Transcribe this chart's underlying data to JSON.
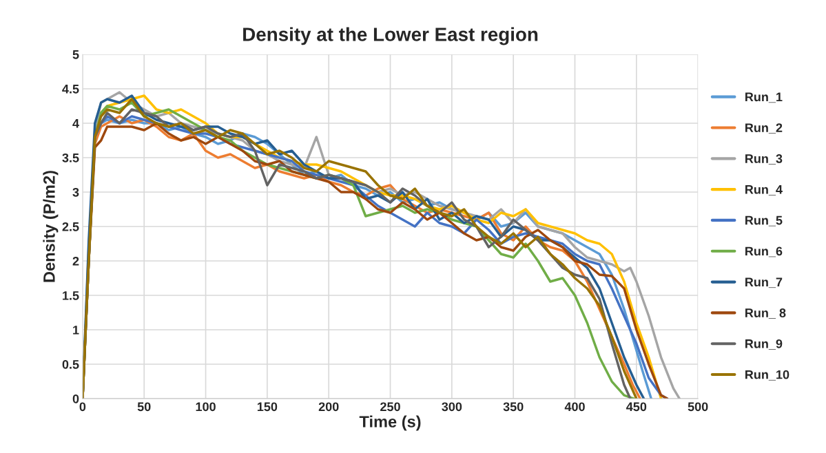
{
  "chart_data": {
    "type": "line",
    "title": "Density at the Lower East region",
    "xlabel": "Time (s)",
    "ylabel": "Density (P/m2)",
    "xlim": [
      0,
      500
    ],
    "xticks": [
      0,
      50,
      100,
      150,
      200,
      250,
      300,
      350,
      400,
      450,
      500
    ],
    "ylim": [
      0,
      5
    ],
    "yticks": [
      0,
      0.5,
      1,
      1.5,
      2,
      2.5,
      3,
      3.5,
      4,
      4.5,
      5
    ],
    "grid": true,
    "legend": "right",
    "marker": "none",
    "line_style": "solid",
    "series": [
      {
        "name": "Run_1",
        "color": "#5b9bd5",
        "x": [
          0,
          5,
          10,
          15,
          20,
          30,
          40,
          50,
          60,
          70,
          80,
          90,
          100,
          110,
          120,
          130,
          140,
          150,
          160,
          170,
          180,
          190,
          200,
          210,
          220,
          230,
          240,
          250,
          260,
          270,
          280,
          290,
          300,
          310,
          320,
          330,
          340,
          350,
          360,
          370,
          380,
          390,
          400,
          410,
          420,
          430,
          440,
          450,
          455,
          462
        ],
        "values": [
          0,
          2.2,
          3.8,
          4.0,
          4.05,
          4.0,
          4.05,
          4.0,
          4.0,
          3.9,
          3.95,
          3.85,
          3.8,
          3.7,
          3.75,
          3.85,
          3.8,
          3.7,
          3.55,
          3.4,
          3.25,
          3.3,
          3.2,
          3.25,
          3.1,
          3.05,
          2.95,
          3.0,
          2.85,
          2.9,
          2.8,
          2.85,
          2.75,
          2.7,
          2.6,
          2.7,
          2.5,
          2.55,
          2.7,
          2.5,
          2.45,
          2.4,
          2.3,
          2.2,
          2.1,
          1.8,
          1.3,
          0.7,
          0.4,
          0
        ]
      },
      {
        "name": "Run_2",
        "color": "#ed7d31",
        "x": [
          0,
          5,
          10,
          15,
          20,
          30,
          40,
          50,
          60,
          70,
          80,
          90,
          100,
          110,
          120,
          130,
          140,
          150,
          160,
          170,
          180,
          190,
          200,
          210,
          220,
          230,
          240,
          250,
          260,
          270,
          280,
          290,
          300,
          310,
          320,
          330,
          340,
          350,
          360,
          370,
          380,
          390,
          400,
          410,
          420,
          430,
          440,
          447,
          453
        ],
        "values": [
          0,
          2.0,
          3.7,
          3.95,
          4.0,
          4.1,
          4.0,
          4.05,
          3.95,
          3.8,
          3.75,
          3.85,
          3.6,
          3.5,
          3.55,
          3.45,
          3.35,
          3.4,
          3.3,
          3.25,
          3.2,
          3.25,
          3.15,
          3.1,
          3.0,
          2.95,
          3.05,
          3.1,
          2.9,
          2.8,
          2.7,
          2.75,
          2.7,
          2.65,
          2.6,
          2.7,
          2.4,
          2.3,
          2.5,
          2.3,
          2.2,
          2.15,
          2.0,
          1.7,
          1.3,
          0.9,
          0.5,
          0.2,
          0
        ]
      },
      {
        "name": "Run_3",
        "color": "#a5a5a5",
        "x": [
          0,
          5,
          10,
          15,
          20,
          30,
          40,
          50,
          60,
          70,
          80,
          90,
          100,
          110,
          120,
          130,
          140,
          150,
          160,
          170,
          180,
          190,
          200,
          210,
          220,
          230,
          240,
          250,
          260,
          270,
          280,
          290,
          300,
          310,
          320,
          330,
          340,
          350,
          360,
          370,
          380,
          390,
          400,
          410,
          420,
          430,
          440,
          445,
          450,
          460,
          470,
          480,
          485
        ],
        "values": [
          0,
          2.1,
          3.9,
          4.3,
          4.35,
          4.45,
          4.3,
          4.2,
          4.1,
          4.15,
          4.0,
          3.95,
          3.9,
          3.85,
          3.8,
          3.75,
          3.6,
          3.55,
          3.45,
          3.4,
          3.35,
          3.8,
          3.25,
          3.2,
          3.15,
          3.1,
          3.0,
          3.05,
          2.95,
          3.0,
          2.9,
          2.8,
          2.75,
          2.7,
          2.65,
          2.6,
          2.75,
          2.55,
          2.75,
          2.5,
          2.45,
          2.4,
          2.2,
          2.05,
          2.0,
          1.95,
          1.85,
          1.9,
          1.7,
          1.2,
          0.6,
          0.15,
          0
        ]
      },
      {
        "name": "Run_4",
        "color": "#ffc000",
        "x": [
          15,
          20,
          30,
          40,
          50,
          60,
          70,
          80,
          90,
          100,
          110,
          120,
          130,
          140,
          150,
          160,
          170,
          180,
          190,
          200,
          210,
          220,
          230,
          240,
          250,
          260,
          270,
          280,
          290,
          300,
          310,
          320,
          330,
          340,
          350,
          360,
          370,
          380,
          390,
          400,
          410,
          420,
          430,
          440,
          450,
          460,
          465,
          470
        ],
        "values": [
          4.15,
          4.25,
          4.3,
          4.35,
          4.4,
          4.2,
          4.15,
          4.2,
          4.1,
          4.0,
          3.85,
          3.8,
          3.8,
          3.7,
          3.6,
          3.5,
          3.45,
          3.4,
          3.4,
          3.35,
          3.3,
          3.2,
          3.1,
          3.0,
          2.95,
          2.95,
          2.9,
          2.8,
          2.75,
          2.8,
          2.7,
          2.6,
          2.55,
          2.7,
          2.65,
          2.75,
          2.55,
          2.5,
          2.45,
          2.4,
          2.3,
          2.25,
          2.1,
          1.7,
          1.1,
          0.6,
          0.3,
          0
        ]
      },
      {
        "name": "Run_5",
        "color": "#4472c4",
        "x": [
          0,
          5,
          10,
          15,
          20,
          30,
          40,
          50,
          60,
          70,
          80,
          90,
          100,
          110,
          120,
          130,
          140,
          150,
          160,
          170,
          180,
          190,
          200,
          210,
          220,
          230,
          240,
          250,
          260,
          270,
          280,
          290,
          300,
          310,
          320,
          330,
          340,
          350,
          360,
          370,
          380,
          390,
          400,
          410,
          420,
          430,
          440,
          450,
          460,
          470,
          475
        ],
        "values": [
          0,
          2.0,
          3.8,
          4.0,
          4.1,
          4.0,
          4.1,
          4.05,
          4.0,
          3.95,
          3.9,
          3.85,
          3.85,
          3.8,
          3.7,
          3.65,
          3.6,
          3.55,
          3.5,
          3.45,
          3.3,
          3.25,
          3.2,
          3.15,
          3.1,
          2.95,
          2.8,
          2.7,
          2.6,
          2.5,
          2.7,
          2.55,
          2.5,
          2.4,
          2.6,
          2.45,
          2.25,
          2.35,
          2.4,
          2.35,
          2.3,
          2.25,
          2.1,
          2.0,
          1.95,
          1.6,
          1.2,
          0.8,
          0.3,
          0.05,
          0
        ]
      },
      {
        "name": "Run_6",
        "color": "#70ad47",
        "x": [
          0,
          5,
          10,
          15,
          20,
          30,
          40,
          50,
          60,
          70,
          80,
          90,
          100,
          110,
          120,
          130,
          140,
          150,
          160,
          170,
          180,
          190,
          200,
          210,
          220,
          230,
          240,
          250,
          260,
          270,
          280,
          290,
          300,
          310,
          320,
          330,
          340,
          350,
          360,
          370,
          380,
          390,
          400,
          410,
          420,
          430,
          440,
          448
        ],
        "values": [
          0,
          2.0,
          3.8,
          4.15,
          4.25,
          4.2,
          4.3,
          4.1,
          4.15,
          4.2,
          4.1,
          4.0,
          3.9,
          3.8,
          3.75,
          3.6,
          3.5,
          3.4,
          3.35,
          3.3,
          3.25,
          3.2,
          3.25,
          3.2,
          3.1,
          2.65,
          2.7,
          2.75,
          2.8,
          2.7,
          2.75,
          2.7,
          2.6,
          2.55,
          2.5,
          2.3,
          2.1,
          2.05,
          2.25,
          2.0,
          1.7,
          1.75,
          1.5,
          1.1,
          0.6,
          0.25,
          0.05,
          0
        ]
      },
      {
        "name": "Run_7",
        "color": "#255e91",
        "x": [
          0,
          5,
          10,
          15,
          20,
          30,
          40,
          50,
          60,
          70,
          80,
          90,
          100,
          110,
          120,
          130,
          140,
          150,
          160,
          170,
          180,
          190,
          200,
          210,
          220,
          230,
          240,
          250,
          260,
          270,
          280,
          290,
          300,
          310,
          320,
          330,
          340,
          350,
          360,
          370,
          380,
          390,
          400,
          410,
          420,
          430,
          440,
          450,
          456
        ],
        "values": [
          0,
          2.3,
          4.0,
          4.3,
          4.35,
          4.3,
          4.4,
          4.15,
          4.05,
          4.0,
          3.95,
          3.9,
          3.95,
          3.95,
          3.85,
          3.8,
          3.7,
          3.75,
          3.55,
          3.6,
          3.4,
          3.3,
          3.2,
          3.2,
          3.15,
          2.9,
          2.95,
          2.85,
          3.0,
          2.75,
          2.9,
          2.6,
          2.7,
          2.55,
          2.65,
          2.6,
          2.35,
          2.5,
          2.45,
          2.3,
          2.3,
          2.2,
          2.05,
          1.9,
          1.6,
          1.1,
          0.6,
          0.2,
          0
        ]
      },
      {
        "name": "Run_ 8",
        "color": "#9e480e",
        "x": [
          0,
          5,
          10,
          15,
          20,
          30,
          40,
          50,
          60,
          70,
          80,
          90,
          100,
          110,
          120,
          130,
          140,
          150,
          160,
          170,
          180,
          190,
          200,
          210,
          220,
          230,
          240,
          250,
          260,
          270,
          280,
          290,
          300,
          310,
          320,
          330,
          340,
          350,
          360,
          370,
          380,
          390,
          400,
          410,
          420,
          430,
          440,
          450,
          460,
          470,
          475
        ],
        "values": [
          0,
          2.0,
          3.65,
          3.75,
          3.95,
          3.95,
          3.95,
          3.9,
          4.0,
          3.85,
          3.75,
          3.8,
          3.7,
          3.8,
          3.7,
          3.6,
          3.45,
          3.4,
          3.45,
          3.3,
          3.25,
          3.2,
          3.15,
          3.0,
          3.0,
          2.9,
          2.75,
          2.7,
          2.85,
          2.75,
          2.6,
          2.7,
          2.55,
          2.4,
          2.3,
          2.35,
          2.2,
          2.15,
          2.35,
          2.45,
          2.3,
          2.2,
          2.0,
          1.95,
          1.8,
          1.78,
          1.6,
          1.0,
          0.5,
          0.05,
          0
        ]
      },
      {
        "name": "Run_9",
        "color": "#636363",
        "x": [
          0,
          5,
          10,
          15,
          20,
          30,
          40,
          50,
          60,
          70,
          80,
          90,
          100,
          110,
          120,
          130,
          140,
          150,
          160,
          170,
          180,
          190,
          200,
          210,
          220,
          230,
          240,
          250,
          260,
          270,
          280,
          290,
          300,
          310,
          320,
          330,
          340,
          350,
          360,
          370,
          380,
          390,
          400,
          410,
          420,
          430,
          440,
          445
        ],
        "values": [
          0,
          2.0,
          3.8,
          4.0,
          4.15,
          4.0,
          4.2,
          4.15,
          4.1,
          3.95,
          4.0,
          3.9,
          3.95,
          3.85,
          3.8,
          3.85,
          3.6,
          3.1,
          3.4,
          3.35,
          3.3,
          3.2,
          3.25,
          3.2,
          3.15,
          3.1,
          3.0,
          2.85,
          3.05,
          2.95,
          2.8,
          2.7,
          2.85,
          2.6,
          2.5,
          2.2,
          2.35,
          2.6,
          2.45,
          2.3,
          2.1,
          1.9,
          1.8,
          1.75,
          1.45,
          0.8,
          0.2,
          0
        ]
      },
      {
        "name": "Run_10",
        "color": "#997300",
        "x": [
          0,
          5,
          10,
          15,
          20,
          30,
          40,
          50,
          60,
          70,
          80,
          90,
          100,
          110,
          120,
          130,
          140,
          150,
          160,
          170,
          180,
          190,
          200,
          210,
          220,
          230,
          240,
          250,
          260,
          270,
          280,
          290,
          300,
          310,
          320,
          330,
          340,
          350,
          360,
          370,
          380,
          390,
          400,
          410,
          420,
          430,
          440,
          450
        ],
        "values": [
          0,
          2.0,
          3.8,
          4.1,
          4.2,
          4.15,
          4.35,
          4.1,
          4.0,
          3.95,
          4.0,
          3.85,
          3.9,
          3.8,
          3.9,
          3.85,
          3.7,
          3.55,
          3.6,
          3.5,
          3.35,
          3.3,
          3.45,
          3.4,
          3.35,
          3.3,
          3.1,
          2.95,
          2.9,
          3.05,
          2.8,
          2.7,
          2.65,
          2.75,
          2.5,
          2.35,
          2.25,
          2.4,
          2.2,
          2.35,
          2.1,
          1.95,
          1.75,
          1.6,
          1.35,
          0.9,
          0.4,
          0
        ]
      }
    ]
  }
}
